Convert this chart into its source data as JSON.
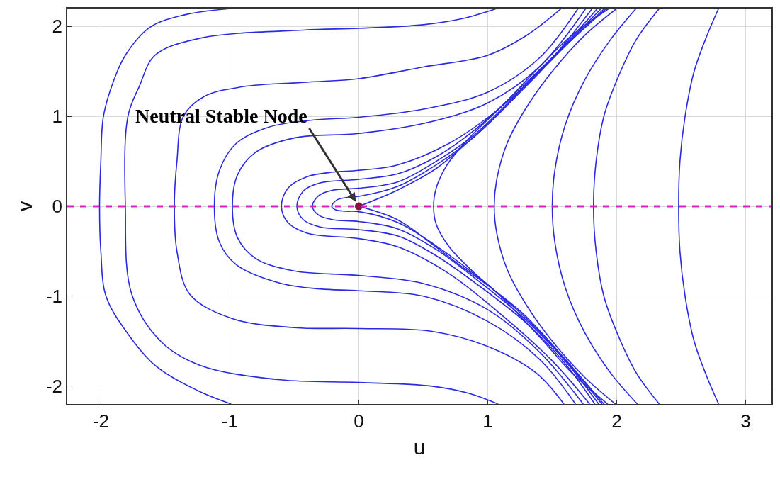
{
  "chart_data": {
    "type": "line",
    "xlabel": "u",
    "ylabel": "v",
    "xlim": [
      -2.26,
      3.2
    ],
    "ylim": [
      -2.2,
      2.2
    ],
    "xticks": [
      -2,
      -1,
      0,
      1,
      2,
      3
    ],
    "yticks": [
      -2,
      -1,
      0,
      1,
      2
    ],
    "grid": true,
    "marker": "none",
    "line_style": "solid",
    "annotations": [
      {
        "text": "Neutral Stable Node",
        "x": 0,
        "y": 0
      }
    ],
    "ref_lines": [
      {
        "axis": "y",
        "value": 0,
        "color": "#e020c0",
        "line_style": "dashed"
      }
    ],
    "series": [
      {
        "color": "#2a2ae0",
        "x": [
          -0.99,
          -1.25,
          -1.58,
          -1.8,
          -1.96,
          -2.0,
          -2.01,
          -2.0,
          -1.98,
          -1.9,
          -1.81,
          -1.62,
          -1.35,
          -0.99
        ],
        "values": [
          -2.2,
          -2.05,
          -1.77,
          -1.4,
          -1.0,
          -0.5,
          0,
          0.5,
          1.0,
          1.4,
          1.68,
          1.99,
          2.13,
          2.2
        ]
      },
      {
        "color": "#2a2ae0",
        "x": [
          1.08,
          0.85,
          0.56,
          0,
          -0.61,
          -1.23,
          -1.53,
          -1.76,
          -1.81,
          -1.79,
          -1.7,
          -1.58,
          -1.23,
          -0.43,
          0,
          0.5,
          0.81,
          1.07
        ],
        "values": [
          -2.2,
          -2.08,
          -2.0,
          -1.96,
          -1.93,
          -1.77,
          -1.51,
          -0.98,
          0,
          1.0,
          1.34,
          1.68,
          1.87,
          1.96,
          1.98,
          2.02,
          2.09,
          2.2
        ]
      },
      {
        "color": "#2a2ae0",
        "x": [
          1.59,
          1.38,
          1.0,
          0.56,
          0,
          -0.5,
          -0.98,
          -1.31,
          -1.41,
          -1.43,
          -1.41,
          -1.36,
          -1.2,
          -0.9,
          -0.4,
          0,
          0.5,
          1.0,
          1.3,
          1.57
        ],
        "values": [
          -2.2,
          -1.86,
          -1.56,
          -1.39,
          -1.36,
          -1.35,
          -1.25,
          -0.98,
          -0.5,
          0,
          0.5,
          1.0,
          1.22,
          1.33,
          1.38,
          1.42,
          1.55,
          1.68,
          1.9,
          2.2
        ]
      },
      {
        "color": "#2a2ae0",
        "x": [
          1.68,
          1.4,
          1.0,
          0.5,
          0,
          -0.3,
          -0.6,
          -0.95,
          -1.08,
          -1.12,
          -1.08,
          -0.95,
          -0.7,
          -0.35,
          0,
          0.5,
          1.0,
          1.4,
          1.7
        ],
        "values": [
          -2.2,
          -1.7,
          -1.28,
          -1.0,
          -0.94,
          -0.92,
          -0.86,
          -0.65,
          -0.4,
          0,
          0.4,
          0.7,
          0.88,
          0.96,
          0.99,
          1.08,
          1.27,
          1.65,
          2.2
        ]
      },
      {
        "color": "#2a2ae0",
        "x": [
          1.74,
          1.4,
          1.0,
          0.5,
          0,
          -0.5,
          -0.8,
          -0.94,
          -0.98,
          -0.94,
          -0.8,
          -0.5,
          0,
          0.5,
          1.0,
          1.4,
          1.76
        ],
        "values": [
          -2.2,
          -1.62,
          -1.15,
          -0.86,
          -0.77,
          -0.72,
          -0.58,
          -0.35,
          0,
          0.35,
          0.6,
          0.76,
          0.81,
          0.92,
          1.15,
          1.55,
          2.2
        ]
      },
      {
        "color": "#2a2ae0",
        "x": [
          1.79,
          1.5,
          1.1,
          0.7,
          0.3,
          0,
          -0.4,
          -0.55,
          -0.6,
          -0.55,
          -0.4,
          -0.2,
          0,
          0.3,
          0.7,
          1.1,
          1.5,
          1.81
        ],
        "values": [
          -2.2,
          -1.72,
          -1.2,
          -0.75,
          -0.45,
          -0.36,
          -0.3,
          -0.18,
          0,
          0.2,
          0.33,
          0.38,
          0.4,
          0.46,
          0.7,
          1.1,
          1.65,
          2.2
        ]
      },
      {
        "color": "#2a2ae0",
        "x": [
          1.83,
          1.6,
          1.3,
          0.9,
          0.6,
          0.3,
          0,
          -0.3,
          -0.43,
          -0.48,
          -0.43,
          -0.3,
          0,
          0.3,
          0.6,
          0.9,
          1.3,
          1.6,
          1.85
        ],
        "values": [
          -2.2,
          -1.75,
          -1.3,
          -0.85,
          -0.55,
          -0.33,
          -0.26,
          -0.23,
          -0.15,
          0,
          0.17,
          0.26,
          0.3,
          0.36,
          0.55,
          0.85,
          1.38,
          1.8,
          2.2
        ]
      },
      {
        "color": "#2a2ae0",
        "x": [
          1.86,
          1.6,
          1.3,
          0.9,
          0.6,
          0.3,
          0,
          -0.2,
          -0.31,
          -0.36,
          -0.31,
          -0.2,
          0,
          0.3,
          0.6,
          0.9,
          1.3,
          1.6,
          1.88
        ],
        "values": [
          -2.2,
          -1.72,
          -1.27,
          -0.8,
          -0.48,
          -0.25,
          -0.17,
          -0.15,
          -0.1,
          0,
          0.12,
          0.18,
          0.2,
          0.27,
          0.5,
          0.8,
          1.36,
          1.79,
          2.2
        ]
      },
      {
        "color": "#2a2ae0",
        "x": [
          1.885,
          1.6,
          1.3,
          0.9,
          0.6,
          0.3,
          0,
          -0.1,
          -0.18,
          -0.21,
          -0.17,
          -0.08,
          0,
          0.3,
          0.6,
          0.9,
          1.3,
          1.6,
          1.905
        ],
        "values": [
          -2.2,
          -1.71,
          -1.25,
          -0.76,
          -0.44,
          -0.18,
          -0.06,
          -0.055,
          -0.04,
          0,
          0.07,
          0.1,
          0.11,
          0.22,
          0.46,
          0.78,
          1.34,
          1.78,
          2.2
        ]
      },
      {
        "color": "#2a2ae0",
        "x": [
          0,
          0.3,
          0.6,
          0.82,
          1.1,
          1.37,
          1.65,
          1.92
        ],
        "values": [
          0,
          0.18,
          0.42,
          0.68,
          1.05,
          1.47,
          1.85,
          2.2
        ]
      },
      {
        "color": "#2a2ae0",
        "x": [
          0,
          0.3,
          0.55,
          0.76,
          1.0,
          1.27,
          1.6,
          1.9
        ],
        "values": [
          0,
          -0.15,
          -0.4,
          -0.63,
          -0.88,
          -1.19,
          -1.7,
          -2.2
        ]
      },
      {
        "color": "#2a2ae0",
        "x": [
          1.93,
          1.65,
          1.4,
          1.1,
          0.88,
          0.7,
          0.6,
          0.58,
          0.6,
          0.68,
          0.85,
          1.1,
          1.4,
          1.65,
          1.94
        ],
        "values": [
          -2.2,
          -1.85,
          -1.45,
          -1.0,
          -0.72,
          -0.45,
          -0.2,
          0,
          0.2,
          0.45,
          0.75,
          1.1,
          1.55,
          1.9,
          2.2
        ]
      },
      {
        "color": "#2a2ae0",
        "x": [
          1.99,
          1.75,
          1.5,
          1.3,
          1.15,
          1.07,
          1.05,
          1.07,
          1.15,
          1.3,
          1.5,
          1.75,
          2.0
        ],
        "values": [
          -2.2,
          -1.9,
          -1.5,
          -1.1,
          -0.7,
          -0.3,
          0,
          0.3,
          0.7,
          1.1,
          1.5,
          1.9,
          2.2
        ]
      },
      {
        "color": "#2a2ae0",
        "x": [
          2.16,
          1.95,
          1.75,
          1.6,
          1.52,
          1.5,
          1.52,
          1.6,
          1.75,
          1.95,
          2.15
        ],
        "values": [
          -2.2,
          -1.85,
          -1.4,
          -0.9,
          -0.4,
          0,
          0.4,
          0.9,
          1.4,
          1.85,
          2.2
        ]
      },
      {
        "color": "#2a2ae0",
        "x": [
          2.33,
          2.15,
          2.0,
          1.9,
          1.84,
          1.82,
          1.84,
          1.9,
          2.0,
          2.15,
          2.33
        ],
        "values": [
          -2.2,
          -1.85,
          -1.4,
          -1.0,
          -0.5,
          0,
          0.5,
          1.0,
          1.4,
          1.85,
          2.2
        ]
      },
      {
        "color": "#2a2ae0",
        "x": [
          2.79,
          2.7,
          2.6,
          2.53,
          2.49,
          2.48,
          2.49,
          2.53,
          2.6,
          2.7,
          2.79
        ],
        "values": [
          -2.2,
          -1.9,
          -1.5,
          -1.0,
          -0.5,
          0,
          0.5,
          1.0,
          1.5,
          1.9,
          2.2
        ]
      },
      {
        "type": "scatter",
        "marker": "circle",
        "color": "#8a1040",
        "x": [
          0
        ],
        "values": [
          0
        ]
      }
    ]
  }
}
